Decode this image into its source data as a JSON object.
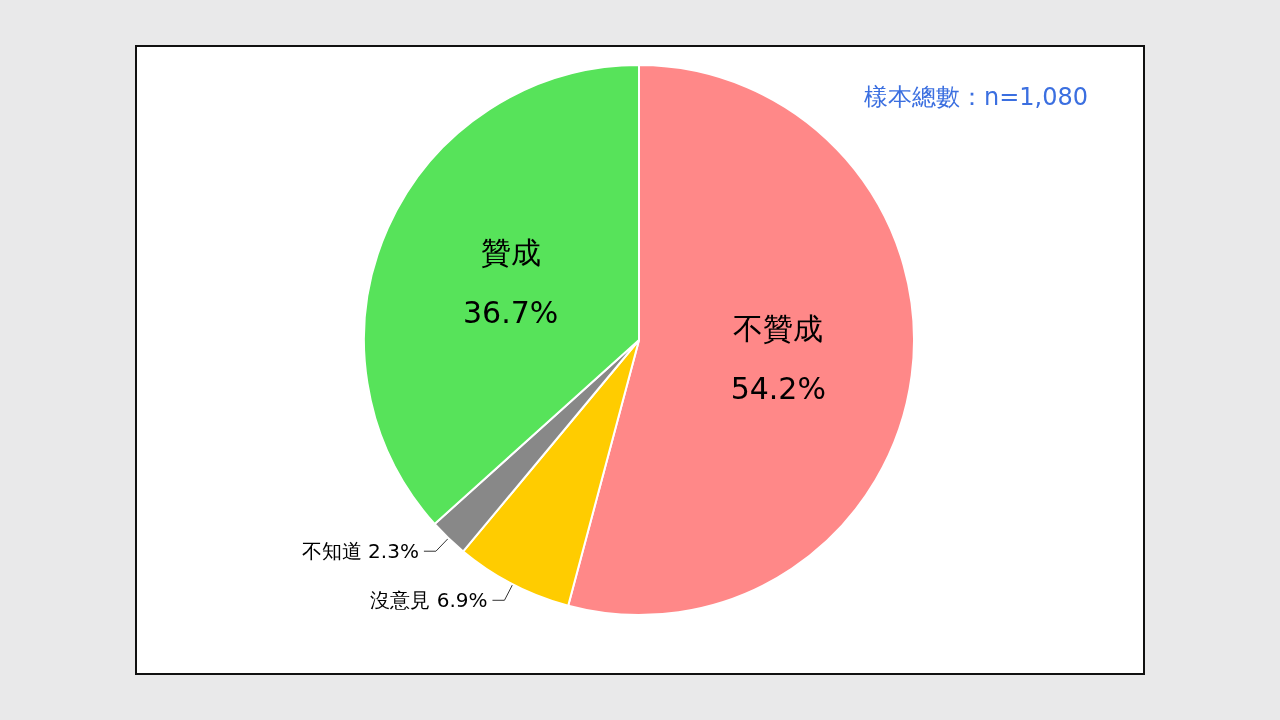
{
  "chart_data": {
    "type": "pie",
    "categories": [
      "不贊成",
      "沒意見",
      "不知道",
      "贊成"
    ],
    "values": [
      54.2,
      6.9,
      2.3,
      36.7
    ],
    "colors": [
      "#ff8888",
      "#ffcc00",
      "#888888",
      "#57e35a"
    ],
    "value_labels": [
      "54.2%",
      "6.9%",
      "2.3%",
      "36.7%"
    ],
    "legend": false,
    "annotations": [
      "樣本總數：n=1,080"
    ]
  }
}
